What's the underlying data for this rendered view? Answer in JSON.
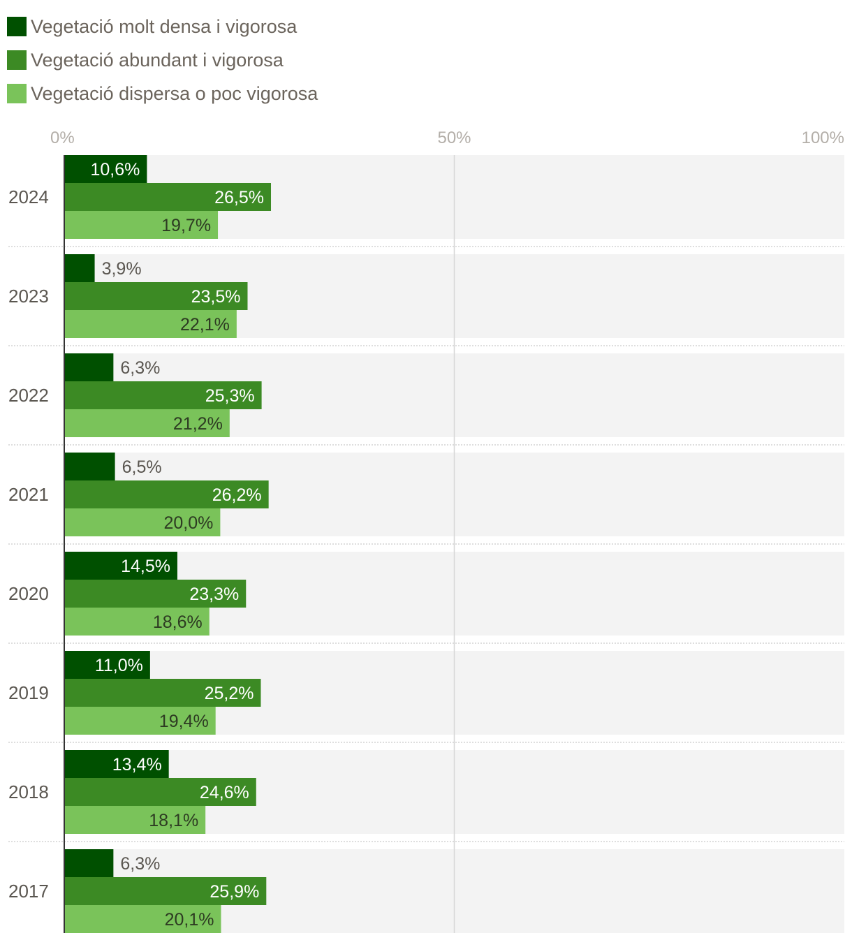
{
  "chart_data": {
    "type": "bar",
    "orientation": "horizontal",
    "categories": [
      "2024",
      "2023",
      "2022",
      "2021",
      "2020",
      "2019",
      "2018",
      "2017"
    ],
    "series": [
      {
        "name": "Vegetació molt densa i vigorosa",
        "color": "#005000",
        "values": [
          10.6,
          3.9,
          6.3,
          6.5,
          14.5,
          11.0,
          13.4,
          6.3
        ],
        "labels": [
          "10,6%",
          "3,9%",
          "6,3%",
          "6,5%",
          "14,5%",
          "11,0%",
          "13,4%",
          "6,3%"
        ]
      },
      {
        "name": "Vegetació abundant i vigorosa",
        "color": "#3c8a24",
        "values": [
          26.5,
          23.5,
          25.3,
          26.2,
          23.3,
          25.2,
          24.6,
          25.9
        ],
        "labels": [
          "26,5%",
          "23,5%",
          "25,3%",
          "26,2%",
          "23,3%",
          "25,2%",
          "24,6%",
          "25,9%"
        ]
      },
      {
        "name": "Vegetació dispersa o poc vigorosa",
        "color": "#7ac35a",
        "values": [
          19.7,
          22.1,
          21.2,
          20.0,
          18.6,
          19.4,
          18.1,
          20.1
        ],
        "labels": [
          "19,7%",
          "22,1%",
          "21,2%",
          "20,0%",
          "18,6%",
          "19,4%",
          "18,1%",
          "20,1%"
        ]
      }
    ],
    "xlim": [
      0,
      100
    ],
    "xticks": [
      0,
      50,
      100
    ],
    "xtick_labels": [
      "0%",
      "50%",
      "100%"
    ],
    "legend": "top-left",
    "grid": true
  }
}
